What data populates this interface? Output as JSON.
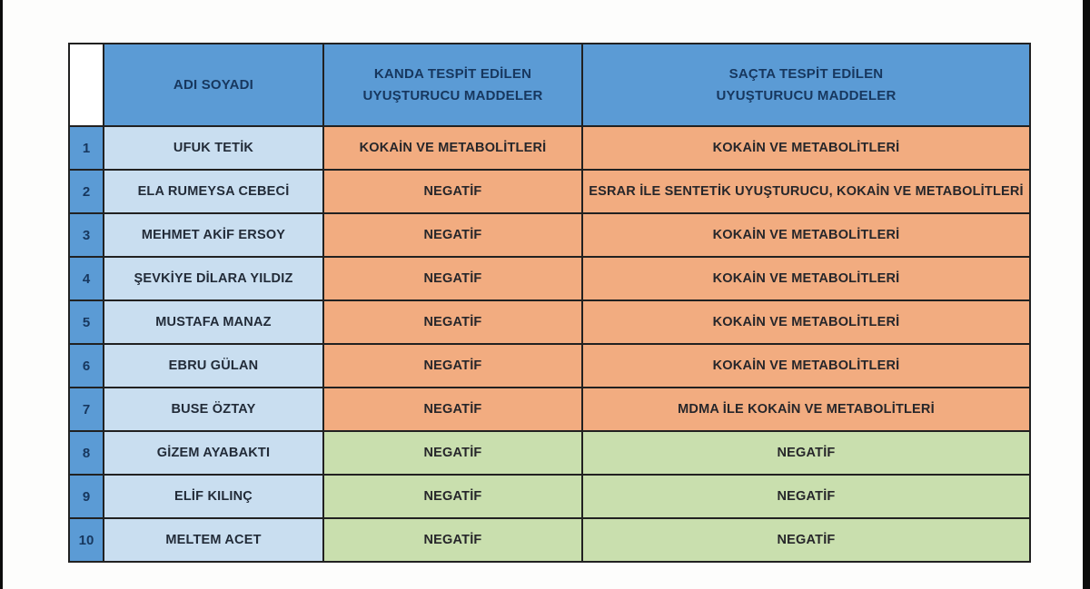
{
  "colors": {
    "header_blue": "#5b9bd5",
    "index_blue": "#5b9bd5",
    "name_light_blue": "#c9def0",
    "positive_orange": "#f2ac80",
    "negative_green": "#c9dfae",
    "border_dark": "#212121",
    "header_text_navy": "#17375e"
  },
  "table": {
    "headers": {
      "corner": "",
      "name": "ADI SOYADI",
      "blood": "KANDA TESPİT EDİLEN\nUYUŞTURUCU MADDELER",
      "hair": "SAÇTA TESPİT EDİLEN\nUYUŞTURUCU MADDELER"
    },
    "rows": [
      {
        "no": "1",
        "name": "UFUK TETİK",
        "blood": "KOKAİN VE METABOLİTLERİ",
        "hair": "KOKAİN VE METABOLİTLERİ",
        "result_color": "orange"
      },
      {
        "no": "2",
        "name": "ELA RUMEYSA CEBECİ",
        "blood": "NEGATİF",
        "hair": "ESRAR İLE SENTETİK UYUŞTURUCU, KOKAİN VE METABOLİTLERİ",
        "result_color": "orange"
      },
      {
        "no": "3",
        "name": "MEHMET AKİF ERSOY",
        "blood": "NEGATİF",
        "hair": "KOKAİN VE METABOLİTLERİ",
        "result_color": "orange"
      },
      {
        "no": "4",
        "name": "ŞEVKİYE DİLARA YILDIZ",
        "blood": "NEGATİF",
        "hair": "KOKAİN VE METABOLİTLERİ",
        "result_color": "orange"
      },
      {
        "no": "5",
        "name": "MUSTAFA MANAZ",
        "blood": "NEGATİF",
        "hair": "KOKAİN VE METABOLİTLERİ",
        "result_color": "orange"
      },
      {
        "no": "6",
        "name": "EBRU GÜLAN",
        "blood": "NEGATİF",
        "hair": "KOKAİN VE METABOLİTLERİ",
        "result_color": "orange"
      },
      {
        "no": "7",
        "name": "BUSE ÖZTAY",
        "blood": "NEGATİF",
        "hair": "MDMA İLE KOKAİN VE METABOLİTLERİ",
        "result_color": "orange"
      },
      {
        "no": "8",
        "name": "GİZEM AYABAKTI",
        "blood": "NEGATİF",
        "hair": "NEGATİF",
        "result_color": "green"
      },
      {
        "no": "9",
        "name": "ELİF KILINÇ",
        "blood": "NEGATİF",
        "hair": "NEGATİF",
        "result_color": "green"
      },
      {
        "no": "10",
        "name": "MELTEM ACET",
        "blood": "NEGATİF",
        "hair": "NEGATİF",
        "result_color": "green"
      }
    ]
  }
}
